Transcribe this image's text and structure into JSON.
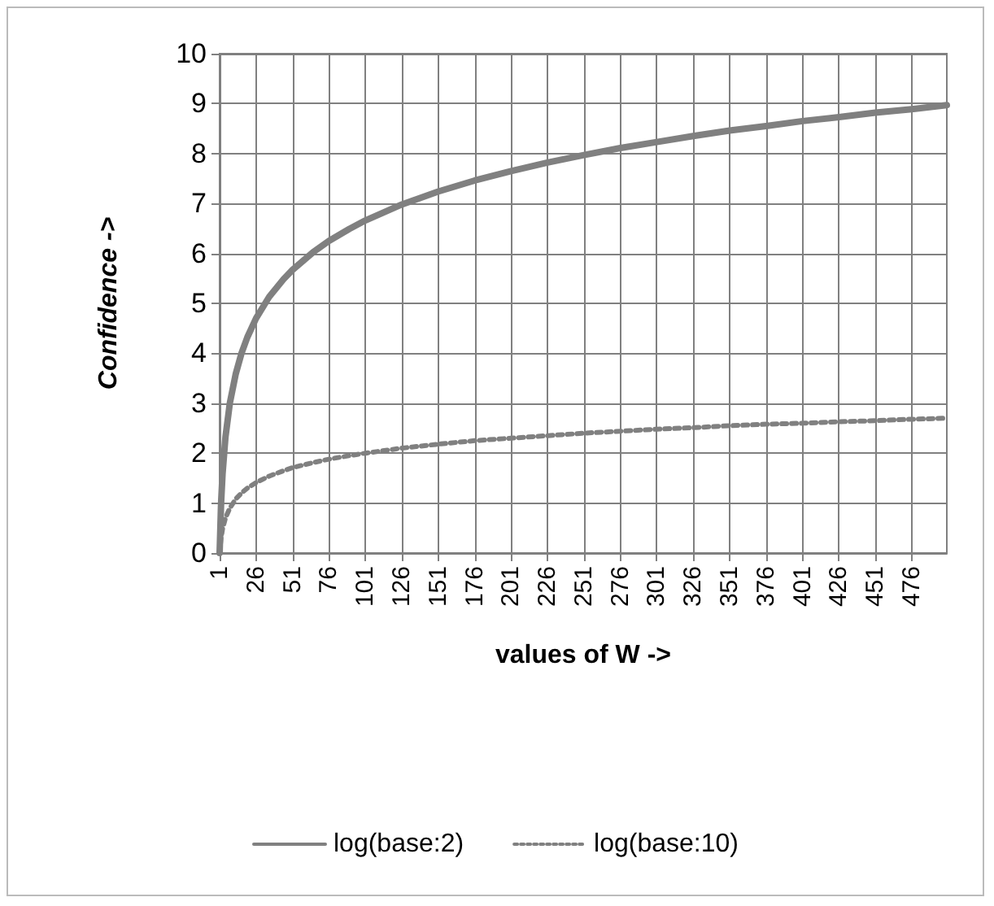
{
  "chart_data": {
    "type": "line",
    "xlabel": "values of W ->",
    "ylabel": "Confidence ->",
    "x": [
      1,
      2,
      3,
      5,
      8,
      12,
      16,
      20,
      26,
      35,
      45,
      51,
      65,
      76,
      90,
      101,
      126,
      151,
      176,
      201,
      226,
      251,
      276,
      301,
      326,
      351,
      376,
      401,
      426,
      451,
      476,
      500
    ],
    "series": [
      {
        "name": "log(base:2)",
        "color": "#808080",
        "line_style": "solid",
        "values": [
          0,
          1,
          1.58,
          2.32,
          3,
          3.58,
          4,
          4.32,
          4.7,
          5.13,
          5.49,
          5.67,
          6.02,
          6.25,
          6.49,
          6.66,
          6.98,
          7.24,
          7.46,
          7.65,
          7.82,
          7.97,
          8.11,
          8.23,
          8.35,
          8.46,
          8.55,
          8.65,
          8.73,
          8.82,
          8.89,
          8.97
        ]
      },
      {
        "name": "log(base:10)",
        "color": "#808080",
        "line_style": "dotted",
        "values": [
          0,
          0.3,
          0.48,
          0.7,
          0.9,
          1.08,
          1.2,
          1.3,
          1.41,
          1.54,
          1.65,
          1.71,
          1.81,
          1.88,
          1.95,
          2,
          2.1,
          2.18,
          2.25,
          2.3,
          2.35,
          2.4,
          2.44,
          2.48,
          2.51,
          2.55,
          2.58,
          2.6,
          2.63,
          2.65,
          2.68,
          2.7
        ]
      }
    ],
    "xlim": [
      1,
      500
    ],
    "xticks": [
      1,
      26,
      51,
      76,
      101,
      126,
      151,
      176,
      201,
      226,
      251,
      276,
      301,
      326,
      351,
      376,
      401,
      426,
      451,
      476
    ],
    "ylim": [
      0,
      10
    ],
    "yticks": [
      0,
      1,
      2,
      3,
      4,
      5,
      6,
      7,
      8,
      9,
      10
    ],
    "grid": true,
    "legend": "bottom",
    "marker": "none"
  }
}
